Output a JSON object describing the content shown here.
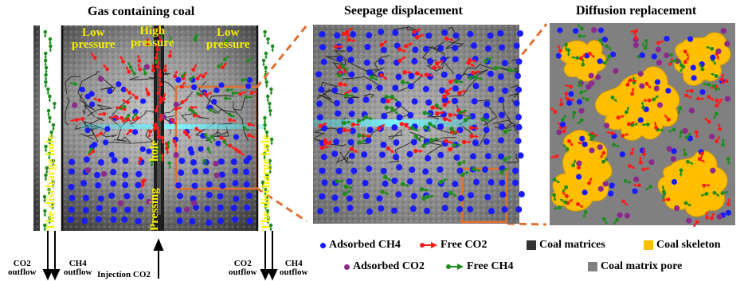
{
  "titles": {
    "left": "Gas containing coal",
    "middle": "Seepage displacement",
    "right": "Diffusion replacement"
  },
  "pressure_labels": {
    "low_left": [
      "Low",
      "pressure"
    ],
    "high": [
      "High",
      "pressure"
    ],
    "low_right": [
      "Low",
      "pressure"
    ]
  },
  "vertical_labels": {
    "hole_left": "The discharge hole",
    "pressing": "Pressing",
    "hole": "hole",
    "hole_right": "The discharge hole"
  },
  "flow_labels": {
    "co2_out_left": [
      "CO2",
      "outflow"
    ],
    "ch4_out_left": [
      "CH4",
      "outflow"
    ],
    "injection": "Injection CO2",
    "co2_out_right": [
      "CO2",
      "outflow"
    ],
    "ch4_out_right": [
      "CH4",
      "outflow"
    ]
  },
  "legend": {
    "adsorbed_ch4": "Adsorbed CH4",
    "free_co2": "Free CO2",
    "coal_matrices": "Coal matrices",
    "coal_skeleton": "Coal skeleton",
    "adsorbed_co2": "Adsorbed CO2",
    "free_ch4": "Free CH4",
    "coal_matrix_pore": "Coal matrix pore"
  },
  "colors": {
    "adsorbed_ch4": "#1a1aff",
    "adsorbed_co2": "#8b2a8b",
    "free_co2": "#ff1a1a",
    "free_ch4": "#1e8c1e",
    "coal_matrices": "#333333",
    "coal_skeleton": "#ffbe00",
    "coal_matrix_pore": "#808080",
    "highlight_box": "#e07030",
    "fracture": "#40d8e0"
  }
}
